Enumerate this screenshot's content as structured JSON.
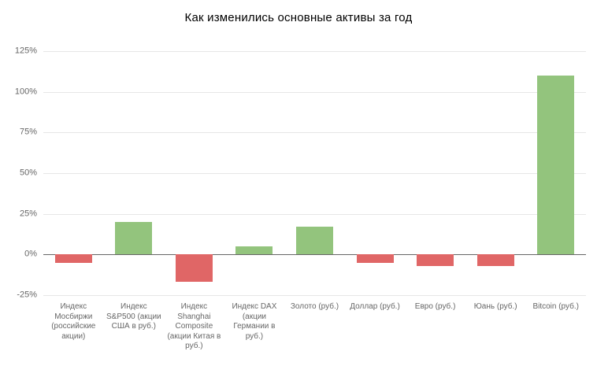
{
  "chart_data": {
    "type": "bar",
    "title": "Как изменились основные активы за год",
    "categories": [
      "Индекс Мосбиржи (российские акции)",
      "Индекс S&P500 (акции США в руб.)",
      "Индекс Shanghai Composite (акции Китая в руб.)",
      "Индекс DAX (акции Германии в руб.)",
      "Золото (руб.)",
      "Доллар (руб.)",
      "Евро (руб.)",
      "Юань (руб.)",
      "Bitcoin (руб.)"
    ],
    "values": [
      -5,
      20,
      -17,
      5,
      17,
      -5,
      -7,
      -7,
      110
    ],
    "unit": "%",
    "ylim": [
      -25,
      125
    ],
    "yticks": [
      -25,
      0,
      25,
      50,
      75,
      100,
      125
    ],
    "ytick_labels": [
      "-25%",
      "0%",
      "25%",
      "50%",
      "75%",
      "100%",
      "125%"
    ],
    "grid": true,
    "legend": "none",
    "colors": {
      "positive": "#93c47d",
      "negative": "#e06666",
      "gridline": "#e6e6e6",
      "zero_line": "#666666",
      "axis_text": "#666666",
      "title_text": "#000000",
      "background": "#ffffff"
    }
  }
}
